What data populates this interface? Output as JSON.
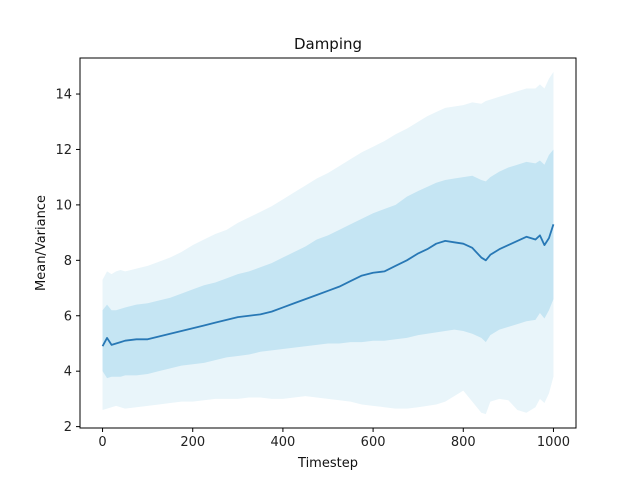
{
  "chart_data": {
    "type": "area",
    "title": "Damping",
    "xlabel": "Timestep",
    "ylabel": "Mean/Variance",
    "xlim": [
      -50,
      1050
    ],
    "ylim": [
      1.95,
      15.3
    ],
    "xticks": [
      0,
      200,
      400,
      600,
      800,
      1000
    ],
    "yticks": [
      2,
      4,
      6,
      8,
      10,
      12,
      14
    ],
    "grid": false,
    "colors": {
      "mean_line": "#2878b5",
      "inner_band": "#c5e5f3",
      "outer_band": "#e9f5fa",
      "axes": "#000000"
    },
    "x": [
      0,
      10,
      20,
      30,
      40,
      50,
      75,
      100,
      125,
      150,
      175,
      200,
      225,
      250,
      275,
      300,
      325,
      350,
      375,
      400,
      425,
      450,
      475,
      500,
      525,
      550,
      575,
      600,
      625,
      650,
      675,
      700,
      720,
      740,
      760,
      780,
      800,
      820,
      840,
      850,
      860,
      880,
      900,
      920,
      940,
      960,
      970,
      980,
      990,
      1000
    ],
    "series": [
      {
        "role": "mean",
        "values": [
          4.9,
          5.2,
          4.95,
          5.0,
          5.05,
          5.1,
          5.15,
          5.15,
          5.25,
          5.35,
          5.45,
          5.55,
          5.65,
          5.75,
          5.85,
          5.95,
          6.0,
          6.05,
          6.15,
          6.3,
          6.45,
          6.6,
          6.75,
          6.9,
          7.05,
          7.25,
          7.45,
          7.55,
          7.6,
          7.8,
          8.0,
          8.25,
          8.4,
          8.6,
          8.7,
          8.65,
          8.6,
          8.45,
          8.1,
          8.0,
          8.2,
          8.4,
          8.55,
          8.7,
          8.85,
          8.75,
          8.9,
          8.55,
          8.8,
          9.3
        ]
      },
      {
        "role": "inner_band_lower",
        "values": [
          4.0,
          3.75,
          3.8,
          3.8,
          3.8,
          3.85,
          3.85,
          3.9,
          4.0,
          4.1,
          4.2,
          4.25,
          4.3,
          4.4,
          4.5,
          4.55,
          4.6,
          4.7,
          4.75,
          4.8,
          4.85,
          4.9,
          4.95,
          5.0,
          5.0,
          5.05,
          5.05,
          5.1,
          5.1,
          5.15,
          5.2,
          5.3,
          5.35,
          5.4,
          5.45,
          5.5,
          5.45,
          5.35,
          5.2,
          5.05,
          5.3,
          5.5,
          5.6,
          5.7,
          5.8,
          5.85,
          6.1,
          5.9,
          6.2,
          6.6
        ]
      },
      {
        "role": "inner_band_upper",
        "values": [
          6.2,
          6.4,
          6.2,
          6.2,
          6.25,
          6.3,
          6.4,
          6.45,
          6.55,
          6.65,
          6.8,
          6.95,
          7.1,
          7.2,
          7.35,
          7.5,
          7.6,
          7.75,
          7.9,
          8.1,
          8.3,
          8.5,
          8.75,
          8.9,
          9.1,
          9.3,
          9.5,
          9.7,
          9.85,
          10.0,
          10.3,
          10.5,
          10.65,
          10.8,
          10.9,
          10.95,
          11.0,
          11.05,
          10.9,
          10.85,
          11.0,
          11.2,
          11.35,
          11.45,
          11.55,
          11.5,
          11.6,
          11.45,
          11.8,
          12.0
        ]
      },
      {
        "role": "outer_band_lower",
        "values": [
          2.6,
          2.65,
          2.7,
          2.75,
          2.7,
          2.65,
          2.7,
          2.75,
          2.8,
          2.85,
          2.9,
          2.9,
          2.95,
          3.0,
          3.0,
          3.0,
          3.05,
          3.05,
          3.0,
          3.0,
          3.05,
          3.1,
          3.05,
          3.0,
          2.95,
          2.9,
          2.8,
          2.75,
          2.7,
          2.65,
          2.65,
          2.7,
          2.75,
          2.8,
          2.9,
          3.1,
          3.3,
          2.9,
          2.5,
          2.45,
          2.9,
          3.0,
          2.95,
          2.6,
          2.5,
          2.7,
          3.0,
          2.85,
          3.2,
          3.8
        ]
      },
      {
        "role": "outer_band_upper",
        "values": [
          7.3,
          7.6,
          7.5,
          7.6,
          7.65,
          7.6,
          7.7,
          7.8,
          7.95,
          8.1,
          8.3,
          8.55,
          8.75,
          8.95,
          9.1,
          9.35,
          9.55,
          9.75,
          9.95,
          10.2,
          10.45,
          10.7,
          10.95,
          11.15,
          11.4,
          11.65,
          11.9,
          12.1,
          12.3,
          12.55,
          12.75,
          13.0,
          13.2,
          13.35,
          13.5,
          13.55,
          13.6,
          13.7,
          13.65,
          13.75,
          13.8,
          13.9,
          14.0,
          14.1,
          14.2,
          14.2,
          14.35,
          14.2,
          14.55,
          14.8
        ]
      }
    ]
  }
}
